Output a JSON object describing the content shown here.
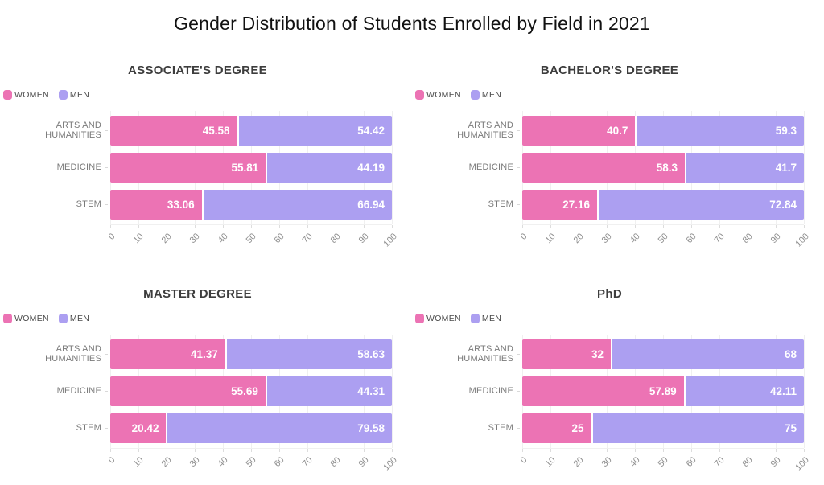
{
  "page_title": "Gender Distribution of Students Enrolled by Field in 2021",
  "legend": {
    "women": "WOMEN",
    "men": "MEN"
  },
  "colors": {
    "women": "#EC73B4",
    "men": "#AC9FF1"
  },
  "axis_ticks": [
    0,
    10,
    20,
    30,
    40,
    50,
    60,
    70,
    80,
    90,
    100
  ],
  "chart_data": [
    {
      "type": "bar",
      "orientation": "horizontal",
      "stacked": true,
      "title": "ASSOCIATE'S DEGREE",
      "categories": [
        "ARTS AND HUMANITIES",
        "MEDICINE",
        "STEM"
      ],
      "series": [
        {
          "name": "WOMEN",
          "values": [
            45.58,
            55.81,
            33.06
          ]
        },
        {
          "name": "MEN",
          "values": [
            54.42,
            44.19,
            66.94
          ]
        }
      ],
      "xlim": [
        0,
        100
      ],
      "legend_position": "top-left",
      "grid": true
    },
    {
      "type": "bar",
      "orientation": "horizontal",
      "stacked": true,
      "title": "BACHELOR'S DEGREE",
      "categories": [
        "ARTS AND HUMANITIES",
        "MEDICINE",
        "STEM"
      ],
      "series": [
        {
          "name": "WOMEN",
          "values": [
            40.7,
            58.3,
            27.16
          ]
        },
        {
          "name": "MEN",
          "values": [
            59.3,
            41.7,
            72.84
          ]
        }
      ],
      "xlim": [
        0,
        100
      ],
      "legend_position": "top-left",
      "grid": true
    },
    {
      "type": "bar",
      "orientation": "horizontal",
      "stacked": true,
      "title": "MASTER DEGREE",
      "categories": [
        "ARTS AND HUMANITIES",
        "MEDICINE",
        "STEM"
      ],
      "series": [
        {
          "name": "WOMEN",
          "values": [
            41.37,
            55.69,
            20.42
          ]
        },
        {
          "name": "MEN",
          "values": [
            58.63,
            44.31,
            79.58
          ]
        }
      ],
      "xlim": [
        0,
        100
      ],
      "legend_position": "top-left",
      "grid": true
    },
    {
      "type": "bar",
      "orientation": "horizontal",
      "stacked": true,
      "title": "PhD",
      "categories": [
        "ARTS AND HUMANITIES",
        "MEDICINE",
        "STEM"
      ],
      "series": [
        {
          "name": "WOMEN",
          "values": [
            32,
            57.89,
            25
          ]
        },
        {
          "name": "MEN",
          "values": [
            68,
            42.11,
            75
          ]
        }
      ],
      "xlim": [
        0,
        100
      ],
      "legend_position": "top-left",
      "grid": true
    }
  ]
}
